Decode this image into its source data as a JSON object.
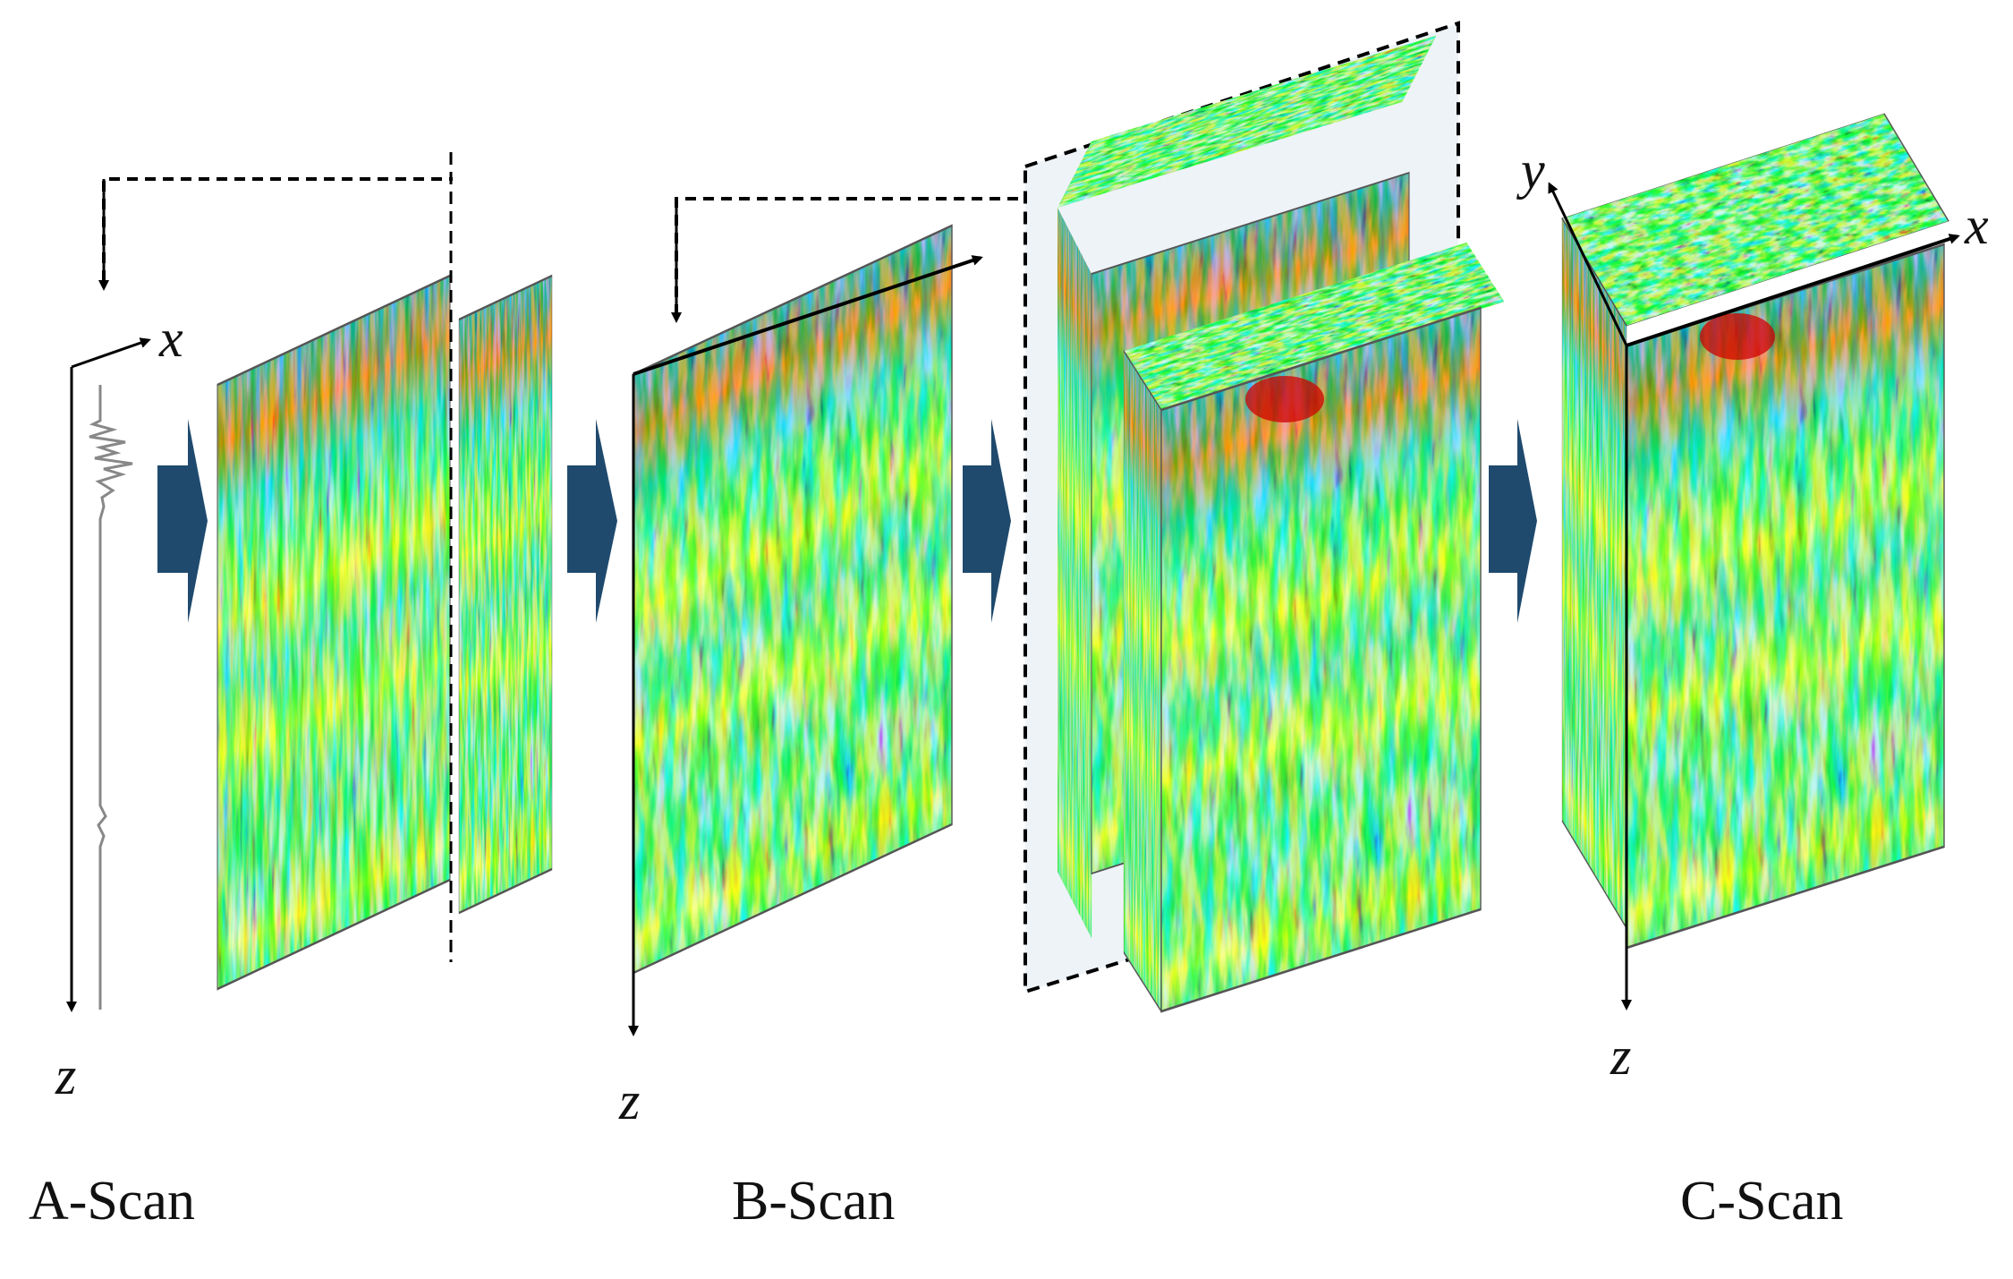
{
  "labels": {
    "scan_a": "A-Scan",
    "scan_b": "B-Scan",
    "scan_c": "C-Scan",
    "axis_x": "x",
    "axis_y": "y",
    "axis_z": "z"
  },
  "colors": {
    "arrow": "#1f4a6e",
    "colormap": [
      "#00008f",
      "#0050ff",
      "#00d0ff",
      "#30e8b0",
      "#80ff80",
      "#e8ff30",
      "#ffd000",
      "#ff6000",
      "#c00000"
    ]
  }
}
